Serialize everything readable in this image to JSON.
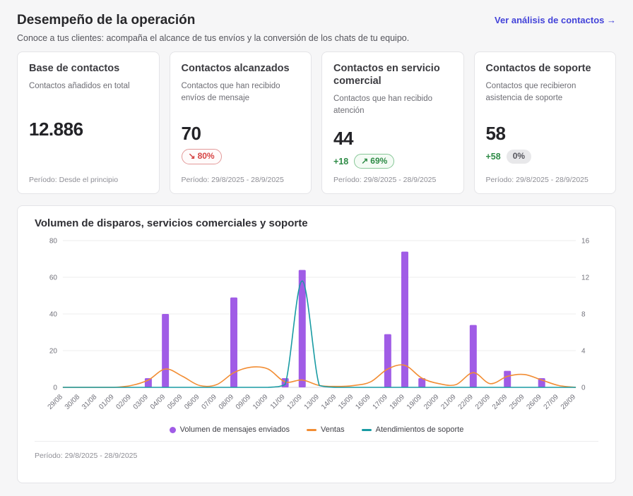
{
  "header": {
    "title": "Desempeño de la operación",
    "subtitle": "Conoce a tus clientes: acompaña el alcance de tus envíos y la conversión de los chats de tu equipo.",
    "link_label": "Ver análisis de contactos →"
  },
  "colors": {
    "accent_link": "#4343d9",
    "bar": "#a05ce6",
    "ventas_line": "#f28d33",
    "soporte_line": "#189ba3",
    "negative": "#d64545",
    "positive": "#2e8b46"
  },
  "stat_cards": [
    {
      "title": "Base de contactos",
      "description": "Contactos añadidos en total",
      "value": "12.886",
      "delta": "",
      "badge_arrow": "",
      "badge_text": "",
      "period": "Período: Desde el principio"
    },
    {
      "title": "Contactos alcanzados",
      "description": "Contactos que han recibido envíos de mensaje",
      "value": "70",
      "delta": "",
      "badge_arrow": "↘",
      "badge_text": "80%",
      "period": "Período: 29/8/2025 - 28/9/2025"
    },
    {
      "title": "Contactos en servicio comercial",
      "description": "Contactos que han recibido atención",
      "value": "44",
      "delta": "+18",
      "badge_arrow": "↗",
      "badge_text": "69%",
      "period": "Período: 29/8/2025 - 28/9/2025"
    },
    {
      "title": "Contactos de soporte",
      "description": "Contactos que recibieron asistencia de soporte",
      "value": "58",
      "delta": "+58",
      "badge_arrow": "",
      "badge_text": "0%",
      "period": "Período: 29/8/2025 - 28/9/2025"
    }
  ],
  "chart": {
    "title": "Volumen de disparos, servicios comerciales y soporte",
    "period": "Período: 29/8/2025 - 28/9/2025"
  },
  "chart_data": {
    "type": "combo-bar-line",
    "categories": [
      "29/08",
      "30/08",
      "31/08",
      "01/09",
      "02/09",
      "03/09",
      "04/09",
      "05/09",
      "06/09",
      "07/09",
      "08/09",
      "09/09",
      "10/09",
      "11/09",
      "12/09",
      "13/09",
      "14/09",
      "15/09",
      "16/09",
      "17/09",
      "18/09",
      "19/09",
      "20/09",
      "21/09",
      "22/09",
      "23/09",
      "24/09",
      "25/09",
      "26/09",
      "27/09",
      "28/09"
    ],
    "left_axis": {
      "ticks": [
        0,
        20,
        40,
        60,
        80
      ],
      "max": 80
    },
    "right_axis": {
      "ticks": [
        0,
        4,
        8,
        12,
        16
      ],
      "max": 16
    },
    "grid": true,
    "legend_position": "bottom",
    "series": [
      {
        "name": "Volumen de mensajes enviados",
        "type": "bar",
        "axis": "left",
        "color": "#a05ce6",
        "values": [
          0,
          0,
          0,
          0,
          0,
          5,
          40,
          0,
          0,
          0,
          49,
          0,
          0,
          5,
          64,
          0,
          0,
          0,
          0,
          29,
          74,
          5,
          0,
          0,
          34,
          0,
          9,
          0,
          5,
          0,
          0
        ]
      },
      {
        "name": "Ventas",
        "type": "line",
        "axis": "right",
        "color": "#f28d33",
        "values": [
          0,
          0,
          0,
          0,
          0.2,
          0.8,
          2,
          1.2,
          0.2,
          0.3,
          1.6,
          2.2,
          2,
          0.6,
          0.8,
          0.2,
          0.1,
          0.2,
          0.6,
          2,
          2.4,
          1,
          0.4,
          0.3,
          1.6,
          0.4,
          1.2,
          1.4,
          0.8,
          0.2,
          0
        ]
      },
      {
        "name": "Atendimientos de soporte",
        "type": "line",
        "axis": "right",
        "color": "#189ba3",
        "values": [
          0,
          0,
          0,
          0,
          0,
          0,
          0,
          0,
          0,
          0,
          0,
          0,
          0,
          0.3,
          11.6,
          0.2,
          0,
          0,
          0,
          0,
          0,
          0,
          0,
          0,
          0,
          0,
          0,
          0,
          0,
          0,
          0
        ]
      }
    ]
  }
}
